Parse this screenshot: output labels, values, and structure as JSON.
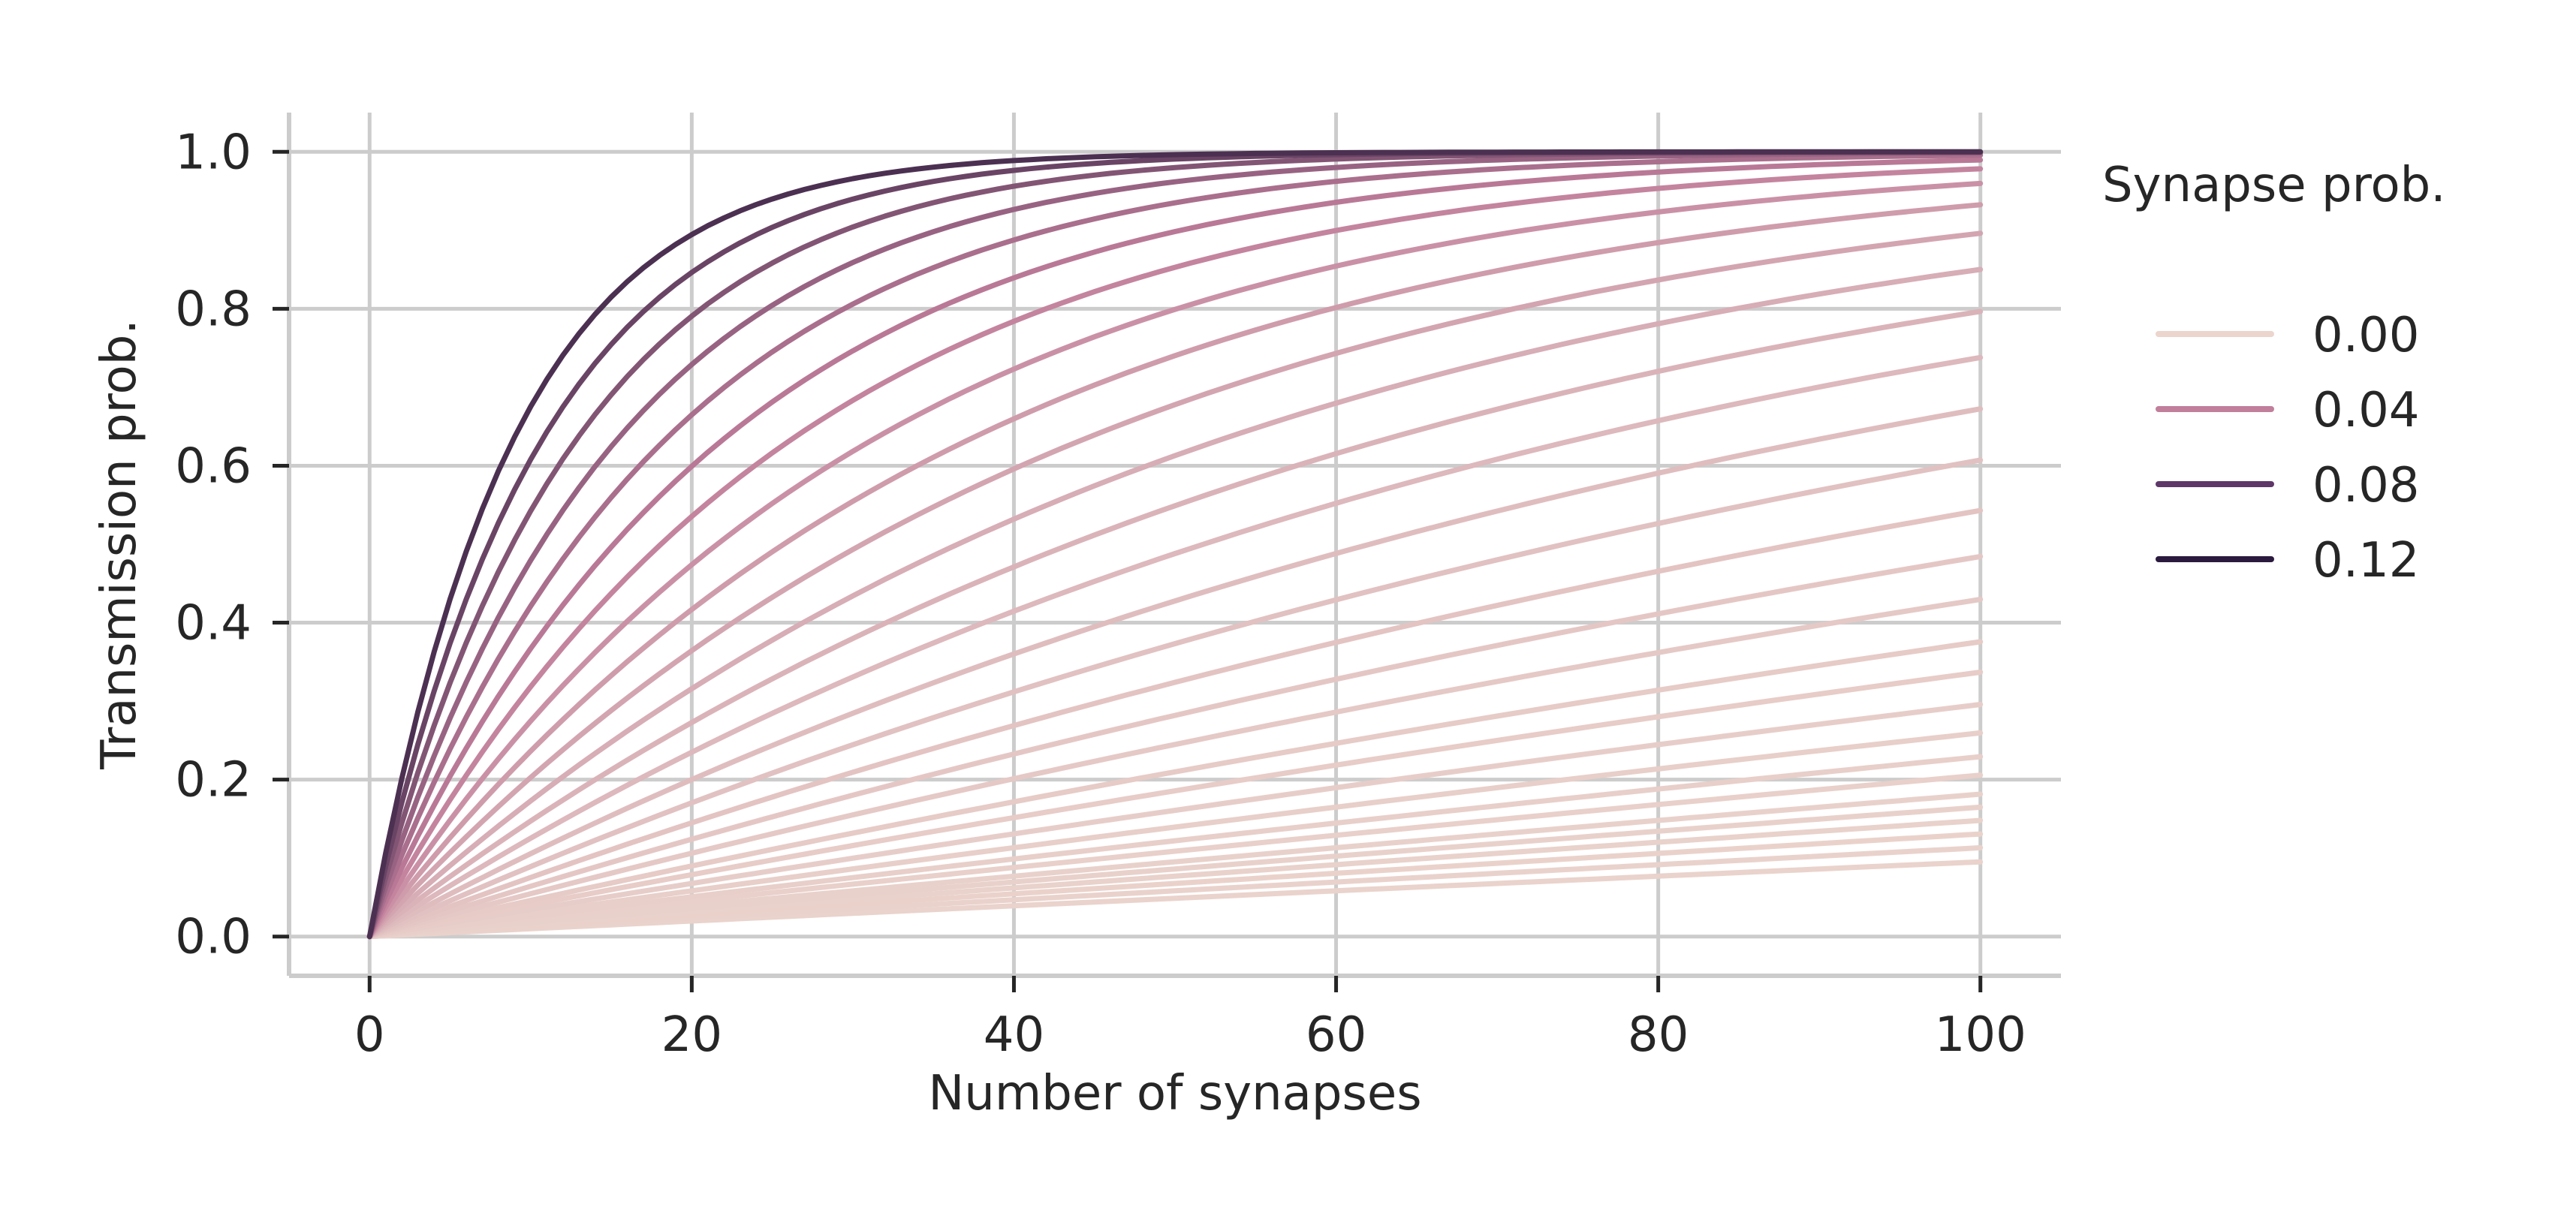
{
  "chart_data": {
    "type": "line",
    "title": "",
    "xlabel": "Number of synapses",
    "ylabel": "Transmission prob.",
    "xlim": [
      -5,
      105
    ],
    "ylim": [
      -0.05,
      1.05
    ],
    "x_ticks": [
      0,
      20,
      40,
      60,
      80,
      100
    ],
    "y_ticks": [
      0.0,
      0.2,
      0.4,
      0.6,
      0.8,
      1.0
    ],
    "x_tick_labels": [
      "0",
      "20",
      "40",
      "60",
      "80",
      "100"
    ],
    "y_tick_labels": [
      "0.0",
      "0.2",
      "0.4",
      "0.6",
      "0.8",
      "1.0"
    ],
    "grid": true,
    "x_domain": [
      0,
      100
    ],
    "formula": "1 - (1 - p)^n",
    "color_range": [
      "#ebd5cd",
      "#2b1a3e"
    ],
    "p_range": [
      0.0,
      0.125
    ],
    "series": [
      {
        "p": 0.001
      },
      {
        "p": 0.0012
      },
      {
        "p": 0.0014
      },
      {
        "p": 0.0016
      },
      {
        "p": 0.0018
      },
      {
        "p": 0.002
      },
      {
        "p": 0.0023
      },
      {
        "p": 0.0026
      },
      {
        "p": 0.003
      },
      {
        "p": 0.0035
      },
      {
        "p": 0.0041
      },
      {
        "p": 0.0047
      },
      {
        "p": 0.0056
      },
      {
        "p": 0.0066
      },
      {
        "p": 0.0078
      },
      {
        "p": 0.0093
      },
      {
        "p": 0.0111
      },
      {
        "p": 0.0133
      },
      {
        "p": 0.0158
      },
      {
        "p": 0.0188
      },
      {
        "p": 0.0224
      },
      {
        "p": 0.0266
      },
      {
        "p": 0.0316
      },
      {
        "p": 0.0376
      },
      {
        "p": 0.0447
      },
      {
        "p": 0.0532
      },
      {
        "p": 0.0632
      },
      {
        "p": 0.0752
      },
      {
        "p": 0.0894
      },
      {
        "p": 0.1064
      }
    ],
    "legend": {
      "title": "Synapse prob.",
      "placement": "right",
      "entries": [
        {
          "label": "0.00",
          "color": "#ebd5cd"
        },
        {
          "label": "0.04",
          "color": "#c17f9b"
        },
        {
          "label": "0.08",
          "color": "#5f3768"
        },
        {
          "label": "0.12",
          "color": "#2b1a3e"
        }
      ]
    }
  }
}
